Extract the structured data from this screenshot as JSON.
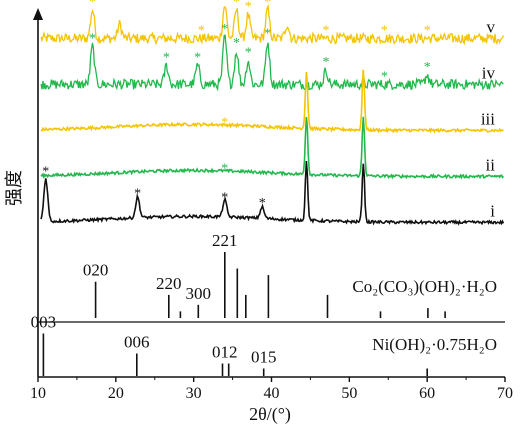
{
  "chart_data": {
    "type": "line",
    "xlabel": "2θ/(°)",
    "ylabel": "强度",
    "xlim": [
      10,
      70
    ],
    "xticks": [
      10,
      20,
      30,
      40,
      50,
      60,
      70
    ],
    "tick_labels": [
      "10",
      "20",
      "30",
      "40",
      "50",
      "60",
      "70"
    ],
    "series": [
      {
        "name": "v",
        "color": "#f5c400",
        "noise": "high",
        "baseline": 0.92,
        "peaks": [
          [
            17.0,
            0.3
          ],
          [
            20.5,
            0.15
          ],
          [
            34.0,
            0.35
          ],
          [
            35.5,
            0.3
          ],
          [
            37.0,
            0.25
          ],
          [
            39.5,
            0.3
          ],
          [
            42.0,
            0.15
          ]
        ],
        "markers": [
          17.0,
          31.0,
          34.0,
          35.5,
          37.0,
          39.5,
          47.0,
          54.5,
          60.0
        ]
      },
      {
        "name": "iv",
        "color": "#22b84c",
        "noise": "high",
        "baseline": 0.72,
        "peaks": [
          [
            17.0,
            0.4
          ],
          [
            26.5,
            0.2
          ],
          [
            30.5,
            0.2
          ],
          [
            34.0,
            0.5
          ],
          [
            35.5,
            0.35
          ],
          [
            37.0,
            0.25
          ],
          [
            39.5,
            0.45
          ],
          [
            47.0,
            0.15
          ],
          [
            60.0,
            0.1
          ]
        ],
        "markers": [
          17.0,
          26.5,
          30.5,
          34.0,
          35.5,
          37.0,
          39.5,
          47.0,
          54.5,
          60.0
        ]
      },
      {
        "name": "iii",
        "color": "#f5c400",
        "noise": "low",
        "baseline": 0.52,
        "peaks": [
          [
            44.5,
            0.6
          ],
          [
            51.8,
            0.62
          ]
        ],
        "markers": [
          34.0
        ]
      },
      {
        "name": "ii",
        "color": "#22b84c",
        "noise": "low",
        "baseline": 0.32,
        "peaks": [
          [
            44.5,
            0.62
          ],
          [
            51.8,
            0.62
          ]
        ],
        "markers": [
          34.0
        ]
      },
      {
        "name": "i",
        "color": "#111111",
        "noise": "low",
        "baseline": 0.12,
        "peaks": [
          [
            11.0,
            0.45
          ],
          [
            22.8,
            0.22
          ],
          [
            34.0,
            0.18
          ],
          [
            38.8,
            0.12
          ],
          [
            44.5,
            0.62
          ],
          [
            51.8,
            0.62
          ]
        ],
        "markers": [
          11.0,
          22.8,
          34.0,
          38.8
        ]
      }
    ],
    "references": [
      {
        "name": "Co₂(CO₃)(OH)₂·H₂O",
        "lines": [
          [
            17.4,
            0.55
          ],
          [
            26.8,
            0.35
          ],
          [
            28.3,
            0.1
          ],
          [
            30.6,
            0.2
          ],
          [
            34.0,
            1.0
          ],
          [
            35.6,
            0.75
          ],
          [
            36.7,
            0.35
          ],
          [
            39.6,
            0.65
          ],
          [
            47.2,
            0.35
          ],
          [
            54.0,
            0.1
          ],
          [
            60.1,
            0.15
          ],
          [
            62.3,
            0.1
          ]
        ],
        "labels": [
          [
            "020",
            17.4
          ],
          [
            "220",
            26.8
          ],
          [
            "300",
            30.6
          ],
          [
            "221",
            34.0
          ]
        ]
      },
      {
        "name": "Ni(OH)₂·0.75H₂O",
        "lines": [
          [
            10.7,
            0.85
          ],
          [
            22.7,
            0.45
          ],
          [
            33.7,
            0.25
          ],
          [
            34.5,
            0.25
          ],
          [
            39.0,
            0.15
          ],
          [
            60.0,
            0.15
          ]
        ],
        "labels": [
          [
            "003",
            10.7
          ],
          [
            "006",
            22.7
          ],
          [
            "012",
            34.0
          ],
          [
            "015",
            39.0
          ]
        ]
      }
    ]
  }
}
